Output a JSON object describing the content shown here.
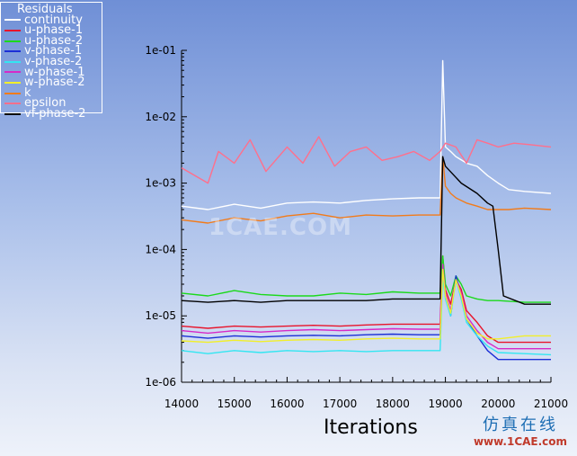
{
  "chart_data": {
    "type": "line",
    "title": "",
    "xlabel": "Iterations",
    "ylabel": "",
    "xlim": [
      14000,
      21000
    ],
    "ylim": [
      1e-06,
      0.1
    ],
    "y_scale": "log",
    "grid": false,
    "legend_position": "top-left",
    "legend_title": "Residuals",
    "x_ticks": [
      "14000",
      "15000",
      "16000",
      "17000",
      "18000",
      "19000",
      "20000",
      "21000"
    ],
    "y_ticks": [
      "1e-06",
      "1e-05",
      "1e-04",
      "1e-03",
      "1e-02",
      "1e-01"
    ],
    "series": [
      {
        "name": "continuity",
        "color": "#ffffff",
        "x": [
          14000,
          14500,
          15000,
          15500,
          16000,
          16500,
          17000,
          17500,
          18000,
          18500,
          18900,
          18950,
          19000,
          19100,
          19200,
          19400,
          19600,
          19800,
          20000,
          20200,
          20500,
          21000
        ],
        "y": [
          0.00045,
          0.0004,
          0.00048,
          0.00042,
          0.0005,
          0.00052,
          0.0005,
          0.00055,
          0.00058,
          0.0006,
          0.0006,
          0.07,
          0.0035,
          0.003,
          0.0025,
          0.002,
          0.0018,
          0.0013,
          0.001,
          0.0008,
          0.00075,
          0.0007
        ]
      },
      {
        "name": "u-phase-1",
        "color": "#e8142b",
        "x": [
          14000,
          14500,
          15000,
          15500,
          16000,
          16500,
          17000,
          17500,
          18000,
          18500,
          18900,
          18950,
          19000,
          19100,
          19200,
          19300,
          19400,
          19600,
          19800,
          20000,
          20500,
          21000
        ],
        "y": [
          7e-06,
          6.5e-06,
          7e-06,
          6.8e-06,
          7e-06,
          7.2e-06,
          7e-06,
          7.3e-06,
          7.5e-06,
          7.5e-06,
          7.5e-06,
          8e-05,
          2.5e-05,
          1.5e-05,
          3.5e-05,
          2.5e-05,
          1.2e-05,
          8e-06,
          5e-06,
          4e-06,
          4e-06,
          4e-06
        ]
      },
      {
        "name": "u-phase-2",
        "color": "#1bd91b",
        "x": [
          14000,
          14500,
          15000,
          15500,
          16000,
          16500,
          17000,
          17500,
          18000,
          18500,
          18900,
          18950,
          19000,
          19100,
          19200,
          19300,
          19400,
          19600,
          19800,
          20000,
          20500,
          21000
        ],
        "y": [
          2.2e-05,
          2e-05,
          2.4e-05,
          2.1e-05,
          2e-05,
          2e-05,
          2.2e-05,
          2.1e-05,
          2.3e-05,
          2.2e-05,
          2.2e-05,
          8e-05,
          3e-05,
          2e-05,
          4e-05,
          3e-05,
          2e-05,
          1.8e-05,
          1.7e-05,
          1.7e-05,
          1.6e-05,
          1.6e-05
        ]
      },
      {
        "name": "v-phase-1",
        "color": "#1c2fd6",
        "x": [
          14000,
          14500,
          15000,
          15500,
          16000,
          16500,
          17000,
          17500,
          18000,
          18500,
          18900,
          18950,
          19000,
          19100,
          19200,
          19300,
          19400,
          19600,
          19800,
          20000,
          20500,
          21000
        ],
        "y": [
          5e-06,
          4.6e-06,
          5e-06,
          4.8e-06,
          5e-06,
          5.1e-06,
          5e-06,
          5.2e-06,
          5.3e-06,
          5.2e-06,
          5.2e-06,
          5e-05,
          2e-05,
          1e-05,
          4e-05,
          2e-05,
          9e-06,
          5e-06,
          3e-06,
          2.2e-06,
          2.2e-06,
          2.2e-06
        ]
      },
      {
        "name": "v-phase-2",
        "color": "#33e6f2",
        "x": [
          14000,
          14500,
          15000,
          15500,
          16000,
          16500,
          17000,
          17500,
          18000,
          18500,
          18900,
          18950,
          19000,
          19100,
          19200,
          19300,
          19400,
          19600,
          19800,
          20000,
          20500,
          21000
        ],
        "y": [
          3e-06,
          2.7e-06,
          3e-06,
          2.8e-06,
          3e-06,
          2.9e-06,
          3e-06,
          2.9e-06,
          3e-06,
          3e-06,
          3e-06,
          4e-05,
          1.8e-05,
          1e-05,
          3.5e-05,
          1.8e-05,
          8e-06,
          5e-06,
          3.5e-06,
          2.8e-06,
          2.7e-06,
          2.6e-06
        ]
      },
      {
        "name": "w-phase-1",
        "color": "#d62ac8",
        "x": [
          14000,
          14500,
          15000,
          15500,
          16000,
          16500,
          17000,
          17500,
          18000,
          18500,
          18900,
          18950,
          19000,
          19100,
          19200,
          19300,
          19400,
          19600,
          19800,
          20000,
          20500,
          21000
        ],
        "y": [
          6e-06,
          5.5e-06,
          6e-06,
          5.7e-06,
          6e-06,
          6.2e-06,
          6e-06,
          6.2e-06,
          6.4e-06,
          6.3e-06,
          6.3e-06,
          6e-05,
          2.2e-05,
          1.2e-05,
          3.5e-05,
          2.2e-05,
          1e-05,
          6e-06,
          4e-06,
          3.2e-06,
          3.2e-06,
          3.2e-06
        ]
      },
      {
        "name": "w-phase-2",
        "color": "#f2ef2a",
        "x": [
          14000,
          14500,
          15000,
          15500,
          16000,
          16500,
          17000,
          17500,
          18000,
          18500,
          18900,
          18950,
          19000,
          19100,
          19200,
          19300,
          19400,
          19600,
          19800,
          20000,
          20500,
          21000
        ],
        "y": [
          4.2e-06,
          4e-06,
          4.3e-06,
          4.1e-06,
          4.3e-06,
          4.4e-06,
          4.3e-06,
          4.5e-06,
          4.6e-06,
          4.5e-06,
          4.5e-06,
          5e-05,
          2e-05,
          1.1e-05,
          3.5e-05,
          2e-05,
          9e-06,
          5.5e-06,
          4.5e-06,
          4.5e-06,
          5e-06,
          5e-06
        ]
      },
      {
        "name": "k",
        "color": "#f27b1a",
        "x": [
          14000,
          14500,
          15000,
          15500,
          16000,
          16500,
          17000,
          17500,
          18000,
          18500,
          18900,
          18950,
          19000,
          19100,
          19200,
          19400,
          19600,
          19800,
          20000,
          20200,
          20500,
          21000
        ],
        "y": [
          0.00028,
          0.00025,
          0.0003,
          0.00027,
          0.00032,
          0.00035,
          0.0003,
          0.00033,
          0.00032,
          0.00033,
          0.00033,
          0.0025,
          0.0009,
          0.0007,
          0.0006,
          0.0005,
          0.00045,
          0.0004,
          0.0004,
          0.0004,
          0.00042,
          0.0004
        ]
      },
      {
        "name": "epsilon",
        "color": "#ff6f8c",
        "x": [
          14000,
          14500,
          14700,
          15000,
          15300,
          15600,
          16000,
          16300,
          16600,
          16900,
          17200,
          17500,
          17800,
          18100,
          18400,
          18700,
          18900,
          19000,
          19200,
          19400,
          19600,
          19800,
          20000,
          20300,
          20600,
          21000
        ],
        "y": [
          0.0017,
          0.001,
          0.003,
          0.002,
          0.0045,
          0.0015,
          0.0035,
          0.002,
          0.005,
          0.0018,
          0.003,
          0.0035,
          0.0022,
          0.0025,
          0.003,
          0.0022,
          0.003,
          0.004,
          0.0035,
          0.002,
          0.0045,
          0.004,
          0.0035,
          0.004,
          0.0038,
          0.0035
        ]
      },
      {
        "name": "vf-phase-2",
        "color": "#000000",
        "x": [
          14000,
          14500,
          15000,
          15500,
          16000,
          16500,
          17000,
          17500,
          18000,
          18500,
          18900,
          18950,
          19000,
          19300,
          19600,
          19800,
          19900,
          20000,
          20100,
          20500,
          21000
        ],
        "y": [
          1.7e-05,
          1.6e-05,
          1.7e-05,
          1.6e-05,
          1.7e-05,
          1.7e-05,
          1.7e-05,
          1.7e-05,
          1.8e-05,
          1.8e-05,
          1.8e-05,
          0.0025,
          0.0018,
          0.001,
          0.0007,
          0.0005,
          0.00045,
          0.0001,
          2e-05,
          1.5e-05,
          1.5e-05
        ]
      }
    ]
  },
  "branding": {
    "watermark": "1CAE.COM",
    "logo_cn": "仿真在线",
    "logo_url": "www.1CAE.com"
  }
}
